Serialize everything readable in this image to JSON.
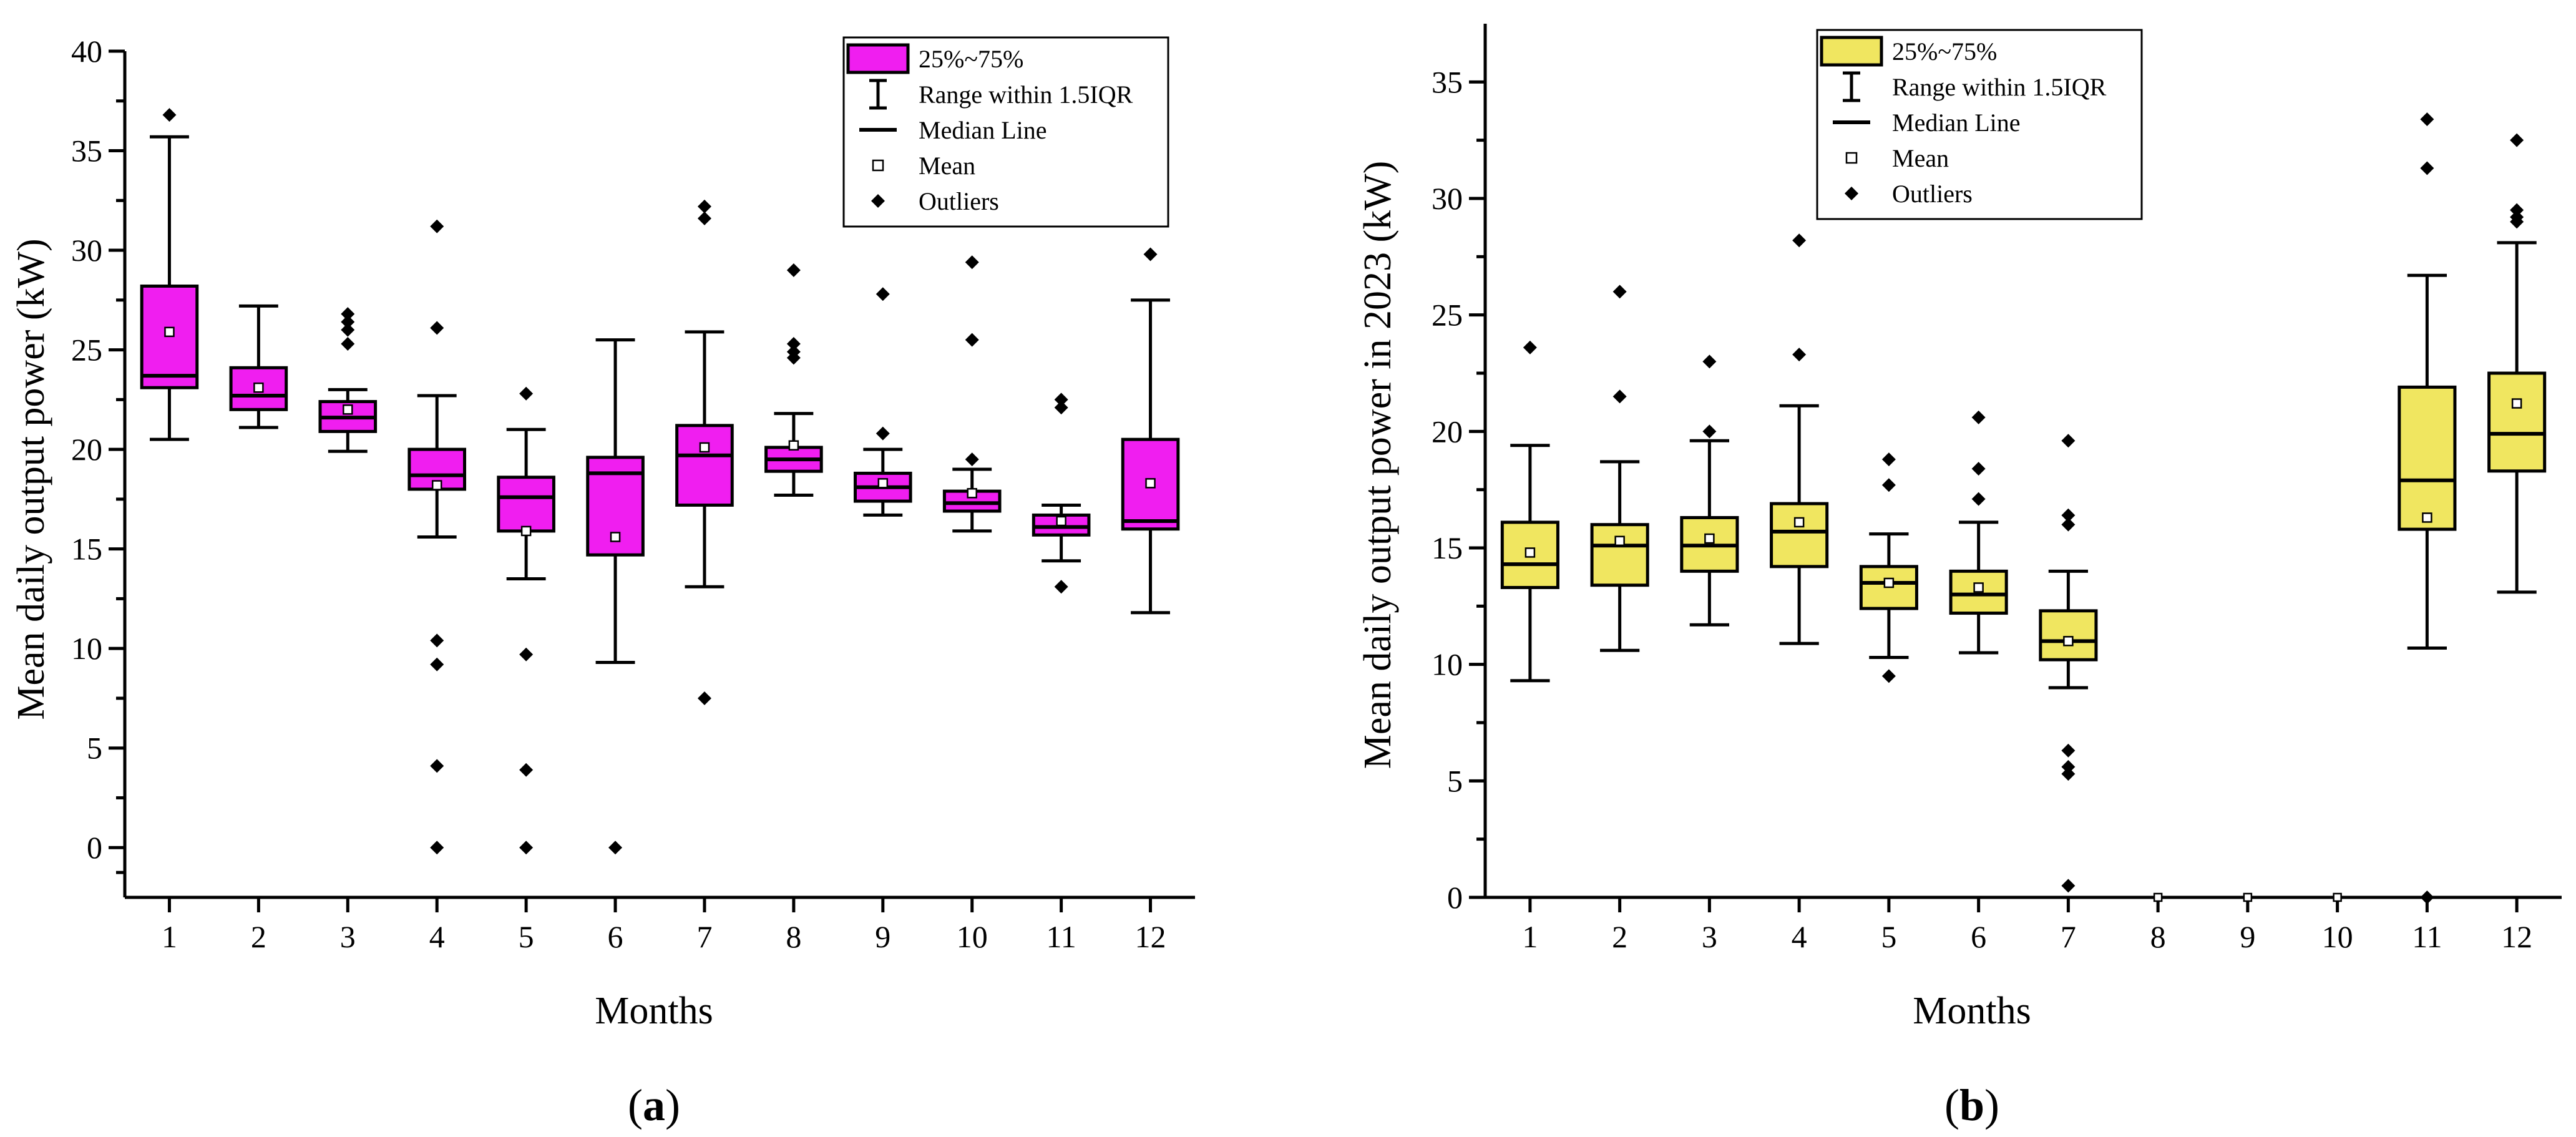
{
  "chart_data": [
    {
      "type": "box",
      "panel": "a",
      "panel_label": "a",
      "xlabel": "Months",
      "ylabel": "Mean daily output power (kW)",
      "categories": [
        "1",
        "2",
        "3",
        "4",
        "5",
        "6",
        "7",
        "8",
        "9",
        "10",
        "11",
        "12"
      ],
      "ylim": [
        -2.5,
        40
      ],
      "yticks": [
        0,
        5,
        10,
        15,
        20,
        25,
        30,
        35,
        40
      ],
      "box_color": "#F01EF0",
      "legend": {
        "box": "25%~75%",
        "range": "Range within 1.5IQR",
        "median": "Median Line",
        "mean": "Mean",
        "outliers": "Outliers"
      },
      "boxes": [
        {
          "month": "1",
          "min": 20.5,
          "q1": 23.1,
          "median": 23.7,
          "q3": 28.2,
          "max": 35.7,
          "mean": 25.9,
          "outliers": [
            36.8
          ]
        },
        {
          "month": "2",
          "min": 21.1,
          "q1": 22.0,
          "median": 22.7,
          "q3": 24.1,
          "max": 27.2,
          "mean": 23.1,
          "outliers": []
        },
        {
          "month": "3",
          "min": 19.9,
          "q1": 20.9,
          "median": 21.6,
          "q3": 22.4,
          "max": 23.0,
          "mean": 22.0,
          "outliers": [
            25.3,
            26.0,
            26.4,
            26.8
          ]
        },
        {
          "month": "4",
          "min": 15.6,
          "q1": 18.0,
          "median": 18.7,
          "q3": 20.0,
          "max": 22.7,
          "mean": 18.2,
          "outliers": [
            31.2,
            26.1,
            10.4,
            9.2,
            4.1,
            0.0
          ]
        },
        {
          "month": "5",
          "min": 13.5,
          "q1": 15.9,
          "median": 17.6,
          "q3": 18.6,
          "max": 21.0,
          "mean": 15.9,
          "outliers": [
            22.8,
            9.7,
            3.9,
            0.0
          ]
        },
        {
          "month": "6",
          "min": 9.3,
          "q1": 14.7,
          "median": 18.8,
          "q3": 19.6,
          "max": 25.5,
          "mean": 15.6,
          "outliers": [
            0.0
          ]
        },
        {
          "month": "7",
          "min": 13.1,
          "q1": 17.2,
          "median": 19.7,
          "q3": 21.2,
          "max": 25.9,
          "mean": 20.1,
          "outliers": [
            32.2,
            31.6,
            7.5
          ]
        },
        {
          "month": "8",
          "min": 17.7,
          "q1": 18.9,
          "median": 19.5,
          "q3": 20.1,
          "max": 21.8,
          "mean": 20.2,
          "outliers": [
            29.0,
            25.3,
            24.9,
            24.6
          ]
        },
        {
          "month": "9",
          "min": 16.7,
          "q1": 17.4,
          "median": 18.1,
          "q3": 18.8,
          "max": 20.0,
          "mean": 18.3,
          "outliers": [
            27.8,
            20.8
          ]
        },
        {
          "month": "10",
          "min": 15.9,
          "q1": 16.9,
          "median": 17.3,
          "q3": 17.9,
          "max": 19.0,
          "mean": 17.8,
          "outliers": [
            29.4,
            25.5,
            19.5
          ]
        },
        {
          "month": "11",
          "min": 14.4,
          "q1": 15.7,
          "median": 16.1,
          "q3": 16.7,
          "max": 17.2,
          "mean": 16.4,
          "outliers": [
            22.5,
            22.1,
            13.1
          ]
        },
        {
          "month": "12",
          "min": 11.8,
          "q1": 16.0,
          "median": 16.4,
          "q3": 20.5,
          "max": 27.5,
          "mean": 18.3,
          "outliers": [
            29.8
          ]
        }
      ]
    },
    {
      "type": "box",
      "panel": "b",
      "panel_label": "b",
      "xlabel": "Months",
      "ylabel": "Mean daily output power in 2023 (kW)",
      "categories": [
        "1",
        "2",
        "3",
        "4",
        "5",
        "6",
        "7",
        "8",
        "9",
        "10",
        "11",
        "12"
      ],
      "ylim": [
        0,
        37.5
      ],
      "yticks": [
        0,
        5,
        10,
        15,
        20,
        25,
        30,
        35
      ],
      "box_color": "#F0E660",
      "legend": {
        "box": "25%~75%",
        "range": "Range within 1.5IQR",
        "median": "Median Line",
        "mean": "Mean",
        "outliers": "Outliers"
      },
      "boxes": [
        {
          "month": "1",
          "min": 9.3,
          "q1": 13.3,
          "median": 14.3,
          "q3": 16.1,
          "max": 19.4,
          "mean": 14.8,
          "outliers": [
            23.6
          ]
        },
        {
          "month": "2",
          "min": 10.6,
          "q1": 13.4,
          "median": 15.1,
          "q3": 16.0,
          "max": 18.7,
          "mean": 15.3,
          "outliers": [
            26.0,
            21.5
          ]
        },
        {
          "month": "3",
          "min": 11.7,
          "q1": 14.0,
          "median": 15.1,
          "q3": 16.3,
          "max": 19.6,
          "mean": 15.4,
          "outliers": [
            23.0,
            20.0
          ]
        },
        {
          "month": "4",
          "min": 10.9,
          "q1": 14.2,
          "median": 15.7,
          "q3": 16.9,
          "max": 21.1,
          "mean": 16.1,
          "outliers": [
            28.2,
            23.3
          ]
        },
        {
          "month": "5",
          "min": 10.3,
          "q1": 12.4,
          "median": 13.5,
          "q3": 14.2,
          "max": 15.6,
          "mean": 13.5,
          "outliers": [
            18.8,
            17.7,
            9.5
          ]
        },
        {
          "month": "6",
          "min": 10.5,
          "q1": 12.2,
          "median": 13.0,
          "q3": 14.0,
          "max": 16.1,
          "mean": 13.3,
          "outliers": [
            20.6,
            18.4,
            17.1
          ]
        },
        {
          "month": "7",
          "min": 9.0,
          "q1": 10.2,
          "median": 11.0,
          "q3": 12.3,
          "max": 14.0,
          "mean": 11.0,
          "outliers": [
            19.6,
            16.4,
            16.0,
            6.3,
            5.6,
            5.3,
            0.5
          ]
        },
        {
          "month": "8",
          "min": 0,
          "q1": 0,
          "median": 0,
          "q3": 0,
          "max": 0,
          "mean": 0,
          "outliers": [],
          "empty": true
        },
        {
          "month": "9",
          "min": 0,
          "q1": 0,
          "median": 0,
          "q3": 0,
          "max": 0,
          "mean": 0,
          "outliers": [],
          "empty": true
        },
        {
          "month": "10",
          "min": 0,
          "q1": 0,
          "median": 0,
          "q3": 0,
          "max": 0,
          "mean": 0,
          "outliers": [],
          "empty": true
        },
        {
          "month": "11",
          "min": 10.7,
          "q1": 15.8,
          "median": 17.9,
          "q3": 21.9,
          "max": 26.7,
          "mean": 16.3,
          "outliers": [
            33.4,
            31.3,
            0.0
          ]
        },
        {
          "month": "12",
          "min": 13.1,
          "q1": 18.3,
          "median": 19.9,
          "q3": 22.5,
          "max": 28.1,
          "mean": 21.2,
          "outliers": [
            32.5,
            29.5,
            29.2,
            29.0
          ]
        }
      ]
    }
  ]
}
